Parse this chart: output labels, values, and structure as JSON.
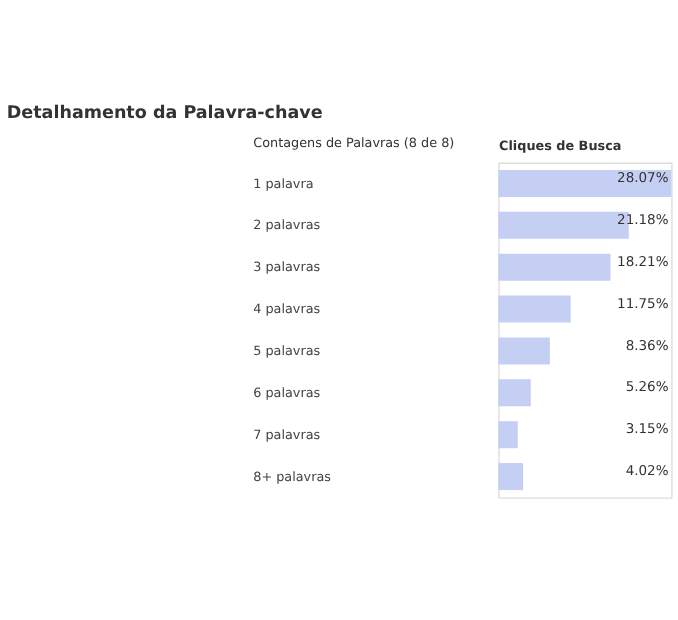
{
  "chart_data": {
    "type": "bar",
    "orientation": "horizontal",
    "title": "Detalhamento da Palavra-chave",
    "xlabel": "Cliques de Busca",
    "ylabel": "Contagens de Palavras (8 de 8)",
    "categories": [
      "1 palavra",
      "2 palavras",
      "3 palavras",
      "4 palavras",
      "5 palavras",
      "6 palavras",
      "7 palavras",
      "8+ palavras"
    ],
    "values": [
      28.07,
      21.18,
      18.21,
      11.75,
      8.36,
      5.26,
      3.15,
      4.02
    ],
    "value_labels": [
      "28.07%",
      "21.18%",
      "18.21%",
      "11.75%",
      "8.36%",
      "5.26%",
      "3.15%",
      "4.02%"
    ],
    "color": "#c5cff3",
    "xlim": [
      0,
      28.07
    ],
    "tick_labels": "y",
    "grid": false
  }
}
